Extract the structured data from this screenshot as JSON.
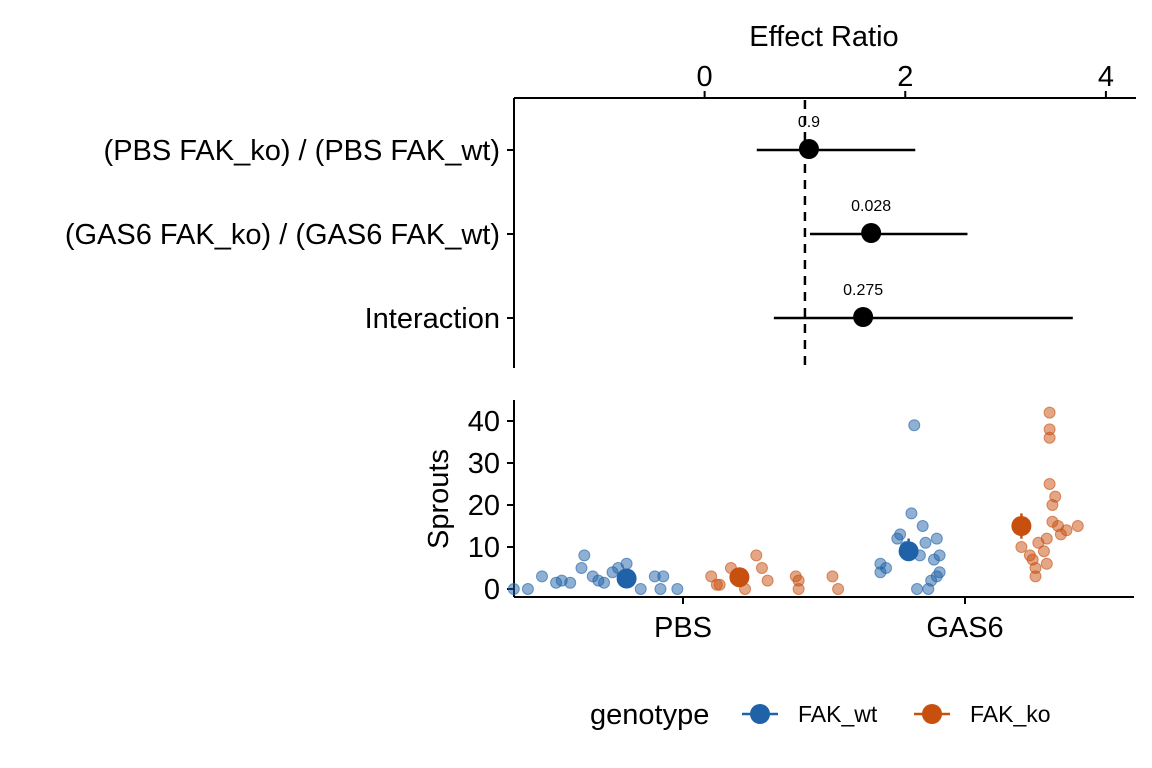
{
  "colors": {
    "FAK_wt": "#1f62a8",
    "FAK_ko": "#c8500f",
    "ink": "#000000"
  },
  "chart_data": [
    {
      "type": "forest",
      "xlabel": "Effect Ratio",
      "x_ticks": [
        "0",
        "2",
        "4"
      ],
      "x_tick_values": [
        0,
        2,
        4
      ],
      "xlim": [
        -1.9,
        4.3
      ],
      "reference_line": 1,
      "rows": [
        {
          "label": "(PBS FAK_ko) / (PBS FAK_wt)",
          "estimate": 1.04,
          "lower": 0.52,
          "upper": 2.1,
          "p_value": "0.9"
        },
        {
          "label": "(GAS6 FAK_ko) / (GAS6 FAK_wt)",
          "estimate": 1.66,
          "lower": 1.05,
          "upper": 2.62,
          "p_value": "0.028"
        },
        {
          "label": "Interaction",
          "estimate": 1.58,
          "lower": 0.69,
          "upper": 3.67,
          "p_value": "0.275"
        }
      ]
    },
    {
      "type": "scatter",
      "ylabel": "Sprouts",
      "categories": [
        "PBS",
        "GAS6"
      ],
      "y_ticks": [
        "0",
        "10",
        "20",
        "30",
        "40"
      ],
      "y_tick_values": [
        0,
        10,
        20,
        30,
        40
      ],
      "ylim": [
        -2,
        44
      ],
      "legend_title": "genotype",
      "legend_position": "bottom",
      "series": [
        {
          "name": "FAK_wt",
          "groups": [
            {
              "category": "PBS",
              "mean": 2.5,
              "ci": [
                1.5,
                3.5
              ],
              "points": [
                [
                  -0.6,
                  0
                ],
                [
                  -0.55,
                  0
                ],
                [
                  -0.5,
                  3
                ],
                [
                  -0.45,
                  1.5
                ],
                [
                  -0.43,
                  2
                ],
                [
                  -0.4,
                  1.5
                ],
                [
                  -0.36,
                  5
                ],
                [
                  -0.35,
                  8
                ],
                [
                  -0.32,
                  3
                ],
                [
                  -0.3,
                  2
                ],
                [
                  -0.28,
                  1.5
                ],
                [
                  -0.25,
                  4
                ],
                [
                  -0.23,
                  5
                ],
                [
                  -0.2,
                  6
                ],
                [
                  -0.15,
                  0
                ],
                [
                  -0.1,
                  3
                ],
                [
                  -0.08,
                  0
                ],
                [
                  -0.07,
                  3
                ],
                [
                  -0.02,
                  0
                ]
              ]
            },
            {
              "category": "GAS6",
              "mean": 9,
              "ci": [
                7,
                12
              ],
              "points": [
                [
                  -0.3,
                  4
                ],
                [
                  -0.3,
                  6
                ],
                [
                  -0.28,
                  5
                ],
                [
                  -0.24,
                  12
                ],
                [
                  -0.23,
                  13
                ],
                [
                  -0.21,
                  10
                ],
                [
                  -0.19,
                  18
                ],
                [
                  -0.18,
                  39
                ],
                [
                  -0.17,
                  0
                ],
                [
                  -0.16,
                  8
                ],
                [
                  -0.15,
                  15
                ],
                [
                  -0.14,
                  11
                ],
                [
                  -0.13,
                  0
                ],
                [
                  -0.12,
                  2
                ],
                [
                  -0.11,
                  7
                ],
                [
                  -0.1,
                  3
                ],
                [
                  -0.1,
                  12
                ],
                [
                  -0.09,
                  4
                ],
                [
                  -0.09,
                  8
                ]
              ]
            }
          ]
        },
        {
          "name": "FAK_ko",
          "groups": [
            {
              "category": "PBS",
              "mean": 2.8,
              "ci": [
                1.8,
                3.8
              ],
              "points": [
                [
                  0.1,
                  3
                ],
                [
                  0.12,
                  1
                ],
                [
                  0.13,
                  1
                ],
                [
                  0.17,
                  5
                ],
                [
                  0.22,
                  0
                ],
                [
                  0.26,
                  8
                ],
                [
                  0.28,
                  5
                ],
                [
                  0.3,
                  2
                ],
                [
                  0.4,
                  3
                ],
                [
                  0.41,
                  2
                ],
                [
                  0.41,
                  0
                ],
                [
                  0.53,
                  3
                ],
                [
                  0.55,
                  0
                ]
              ]
            },
            {
              "category": "GAS6",
              "mean": 15,
              "ci": [
                12,
                18
              ],
              "points": [
                [
                  0.2,
                  10
                ],
                [
                  0.23,
                  8
                ],
                [
                  0.24,
                  7
                ],
                [
                  0.25,
                  3
                ],
                [
                  0.25,
                  5
                ],
                [
                  0.26,
                  11
                ],
                [
                  0.28,
                  9
                ],
                [
                  0.29,
                  12
                ],
                [
                  0.29,
                  6
                ],
                [
                  0.3,
                  25
                ],
                [
                  0.3,
                  36
                ],
                [
                  0.3,
                  38
                ],
                [
                  0.3,
                  42
                ],
                [
                  0.31,
                  20
                ],
                [
                  0.31,
                  16
                ],
                [
                  0.32,
                  22
                ],
                [
                  0.33,
                  15
                ],
                [
                  0.34,
                  13
                ],
                [
                  0.36,
                  14
                ],
                [
                  0.4,
                  15
                ]
              ]
            }
          ]
        }
      ]
    }
  ]
}
